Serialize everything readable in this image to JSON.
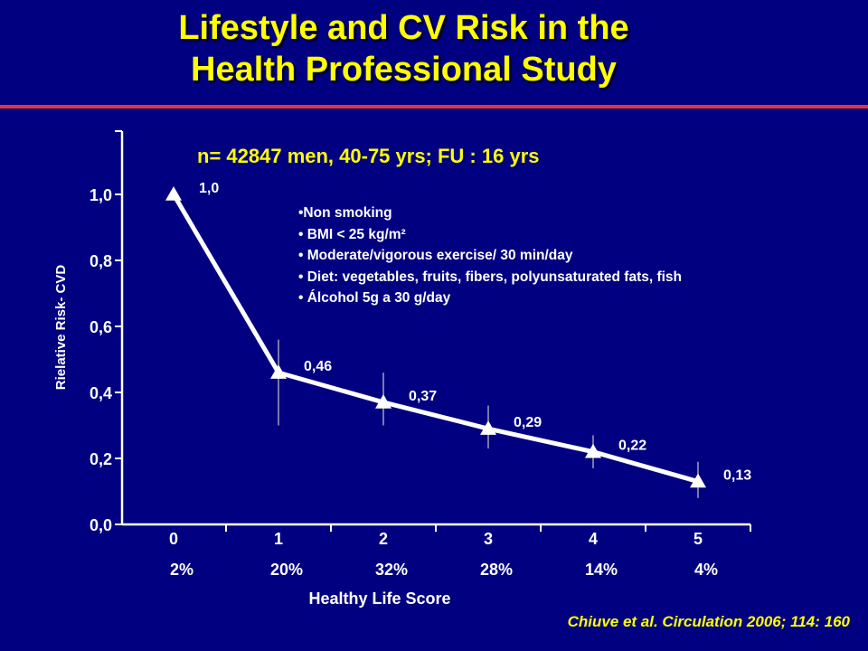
{
  "title_lines": [
    "Lifestyle and CV Risk in the",
    "Health Professional Study"
  ],
  "subtitle": "n= 42847 men, 40-75 yrs; FU : 16 yrs",
  "notes": [
    "•Non smoking",
    "• BMI < 25 kg/m²",
    "• Moderate/vigorous exercise/ 30 min/day",
    "• Diet: vegetables, fruits, fibers, polyunsaturated fats, fish",
    "• Álcohol 5g a 30 g/day"
  ],
  "citation": "Chiuve et al. Circulation 2006; 114: 160",
  "colors": {
    "background": "#000080",
    "title": "#ffff00",
    "divider": "#e8333a",
    "line": "#ffffff"
  },
  "chart_data": {
    "type": "line",
    "xlabel": "Healthy Life Score",
    "ylabel": "Rielative Risk- CVD",
    "ylim": [
      0,
      1.2
    ],
    "yticks": [
      0.0,
      0.2,
      0.4,
      0.6,
      0.8,
      1.0
    ],
    "ytick_labels": [
      "0,0",
      "0,2",
      "0,4",
      "0,6",
      "0,8",
      "1,0"
    ],
    "categories": [
      "0",
      "1",
      "2",
      "3",
      "4",
      "5"
    ],
    "category_percents": [
      "2%",
      "20%",
      "32%",
      "28%",
      "14%",
      "4%"
    ],
    "values": [
      1.0,
      0.46,
      0.37,
      0.29,
      0.22,
      0.13
    ],
    "value_labels": [
      "1,0",
      "0,46",
      "0,37",
      "0,29",
      "0,22",
      "0,13"
    ],
    "ci": [
      null,
      [
        0.3,
        0.56
      ],
      [
        0.3,
        0.46
      ],
      [
        0.23,
        0.36
      ],
      [
        0.17,
        0.27
      ],
      [
        0.08,
        0.19
      ]
    ],
    "marker": "triangle",
    "grid": false,
    "legend": "none"
  }
}
